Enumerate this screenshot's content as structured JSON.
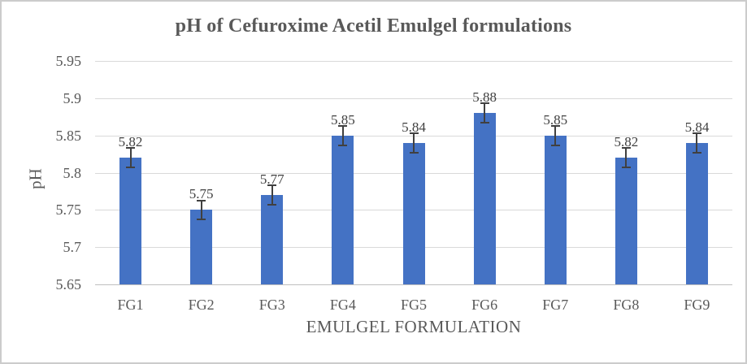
{
  "chart_data": {
    "type": "bar",
    "title": "pH of Cefuroxime Acetil Emulgel formulations",
    "xlabel": "EMULGEL FORMULATION",
    "ylabel": "pH",
    "categories": [
      "FG1",
      "FG2",
      "FG3",
      "FG4",
      "FG5",
      "FG6",
      "FG7",
      "FG8",
      "FG9"
    ],
    "values": [
      5.82,
      5.75,
      5.77,
      5.85,
      5.84,
      5.88,
      5.85,
      5.82,
      5.84
    ],
    "data_labels": [
      "5.82",
      "5.75",
      "5.77",
      "5.85",
      "5.84",
      "5.88",
      "5.85",
      "5.82",
      "5.84"
    ],
    "y_error": 0.014,
    "ylim": [
      5.65,
      5.95
    ],
    "yticks": [
      {
        "label": "5.95",
        "value": 5.95
      },
      {
        "label": "5.9",
        "value": 5.9
      },
      {
        "label": "5.85",
        "value": 5.85
      },
      {
        "label": "5.8",
        "value": 5.8
      },
      {
        "label": "5.75",
        "value": 5.75
      },
      {
        "label": "5.7",
        "value": 5.7
      },
      {
        "label": "5.65",
        "value": 5.65
      }
    ],
    "grid": true,
    "legend": "none",
    "colors": {
      "bar_fill": "#4472c4",
      "gridline": "#d9d9d9",
      "axis_line": "#bfbfbf",
      "axis_text": "#595959",
      "data_label_text": "#404040",
      "error_bar": "#404040",
      "title_text": "#595959",
      "chart_border": "#cccccc"
    }
  }
}
